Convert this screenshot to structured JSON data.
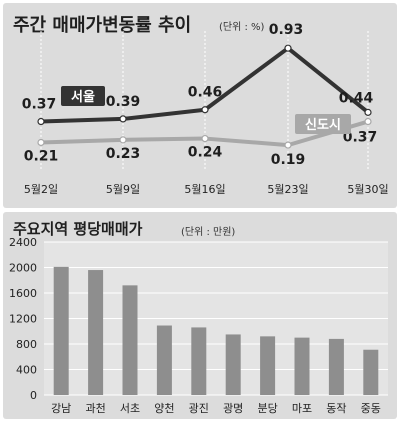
{
  "chart_data": [
    {
      "type": "line",
      "title": "주간 매매가변동률 추이",
      "unit": "(단위 : %)",
      "categories": [
        "5월2일",
        "5월9일",
        "5월16일",
        "5월23일",
        "5월30일"
      ],
      "series": [
        {
          "name": "서울",
          "values": [
            0.37,
            0.39,
            0.46,
            0.93,
            0.44
          ],
          "color": "#333333"
        },
        {
          "name": "신도시",
          "values": [
            0.21,
            0.23,
            0.24,
            0.19,
            0.37
          ],
          "color": "#a8a8a8"
        }
      ],
      "data_labels": {
        "서울": [
          "0.37",
          "0.39",
          "0.46",
          "0.93",
          "0.44"
        ],
        "신도시": [
          "0.21",
          "0.23",
          "0.24",
          "0.19",
          "0.37"
        ]
      },
      "grid": "vertical dotted",
      "legend": "inline-tags"
    },
    {
      "type": "bar",
      "title": "주요지역 평당매매가",
      "unit": "(단위 : 만원)",
      "categories": [
        "강남",
        "과천",
        "서초",
        "양천",
        "광진",
        "광명",
        "분당",
        "마포",
        "동작",
        "중동"
      ],
      "values": [
        2010,
        1960,
        1720,
        1090,
        1060,
        950,
        920,
        900,
        880,
        710
      ],
      "yticks": [
        "0",
        "400",
        "800",
        "1200",
        "1600",
        "2000",
        "2400"
      ],
      "ylim": [
        0,
        2400
      ],
      "bar_color": "#8e8e8e",
      "grid": "horizontal"
    }
  ]
}
